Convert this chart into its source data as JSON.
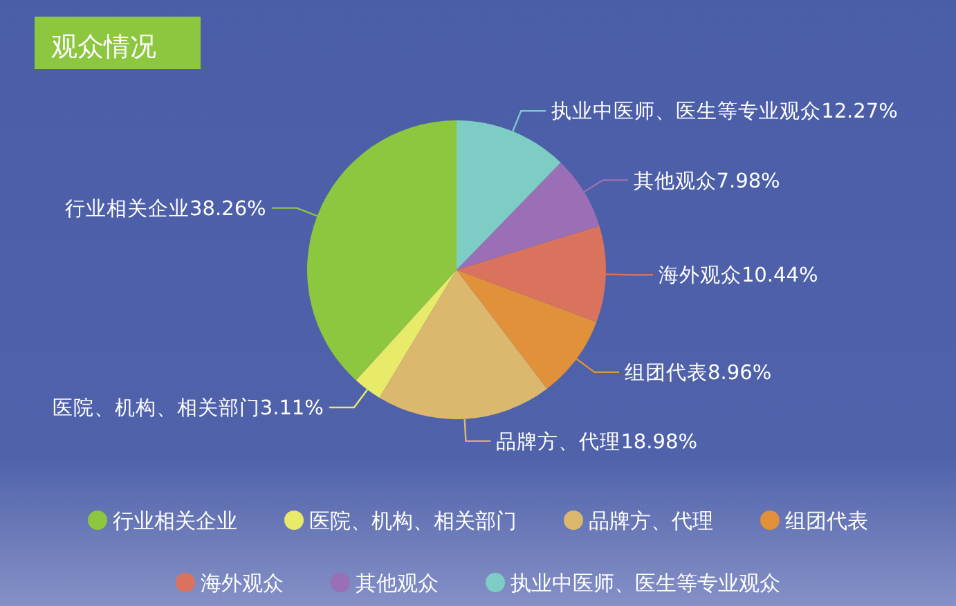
{
  "chart_data": {
    "type": "pie",
    "title": "观众情况",
    "categories": [
      "行业相关企业",
      "医院、机构、相关部门",
      "品牌方、代理",
      "组团代表",
      "海外观众",
      "其他观众",
      "执业中医师、医生等专业观众"
    ],
    "values": [
      38.26,
      3.11,
      18.98,
      8.96,
      10.44,
      7.98,
      12.27
    ],
    "value_labels": [
      "38.26%",
      "3.11%",
      "18.98%",
      "8.96%",
      "10.44%",
      "7.98%",
      "12.27%"
    ],
    "colors": [
      "#8dc63f",
      "#e8ea6a",
      "#dcb86e",
      "#e0913a",
      "#d9735e",
      "#9b6fb5",
      "#7ecdc4"
    ],
    "legend": "bottom"
  }
}
